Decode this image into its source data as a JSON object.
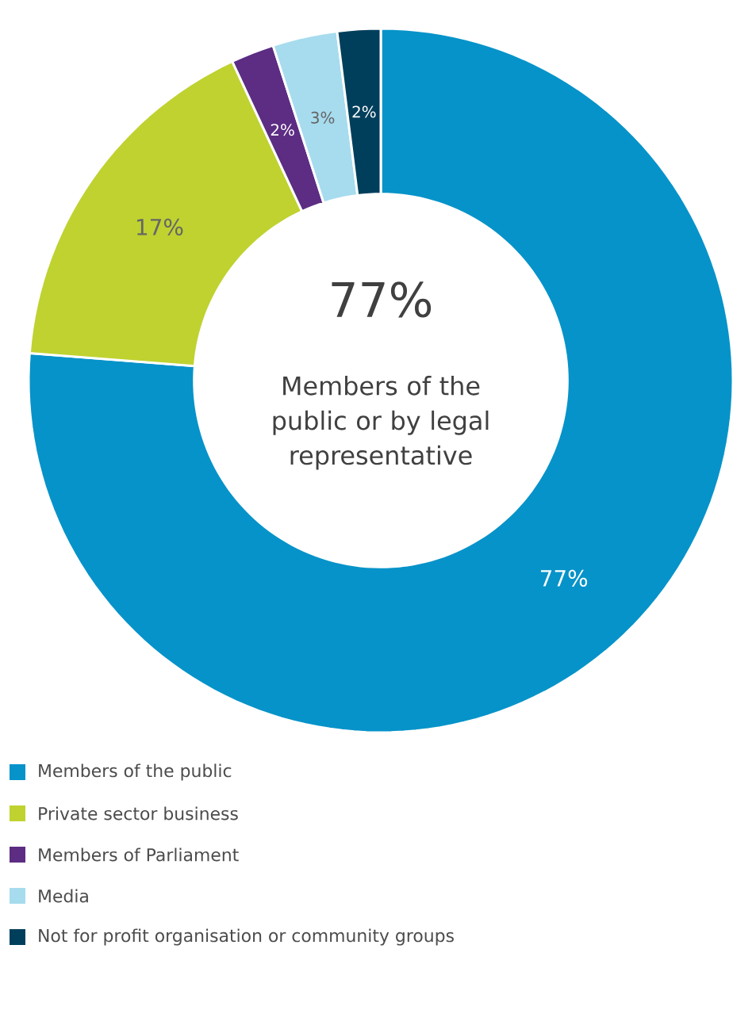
{
  "chart_data": {
    "type": "donut",
    "categories": [
      "Members of the public",
      "Private sector business",
      "Members of Parliament",
      "Media",
      "Not for profit organisation or community groups"
    ],
    "values": [
      77,
      17,
      2,
      3,
      2
    ],
    "colors": [
      "#0693c9",
      "#bfd230",
      "#5c2d83",
      "#a6dcee",
      "#003f5c"
    ],
    "value_labels": [
      "77%",
      "17%",
      "2%",
      "3%",
      "2%"
    ],
    "legend": "bottom left",
    "annotations": [
      "77%",
      "Members of the public or by legal representative"
    ]
  }
}
